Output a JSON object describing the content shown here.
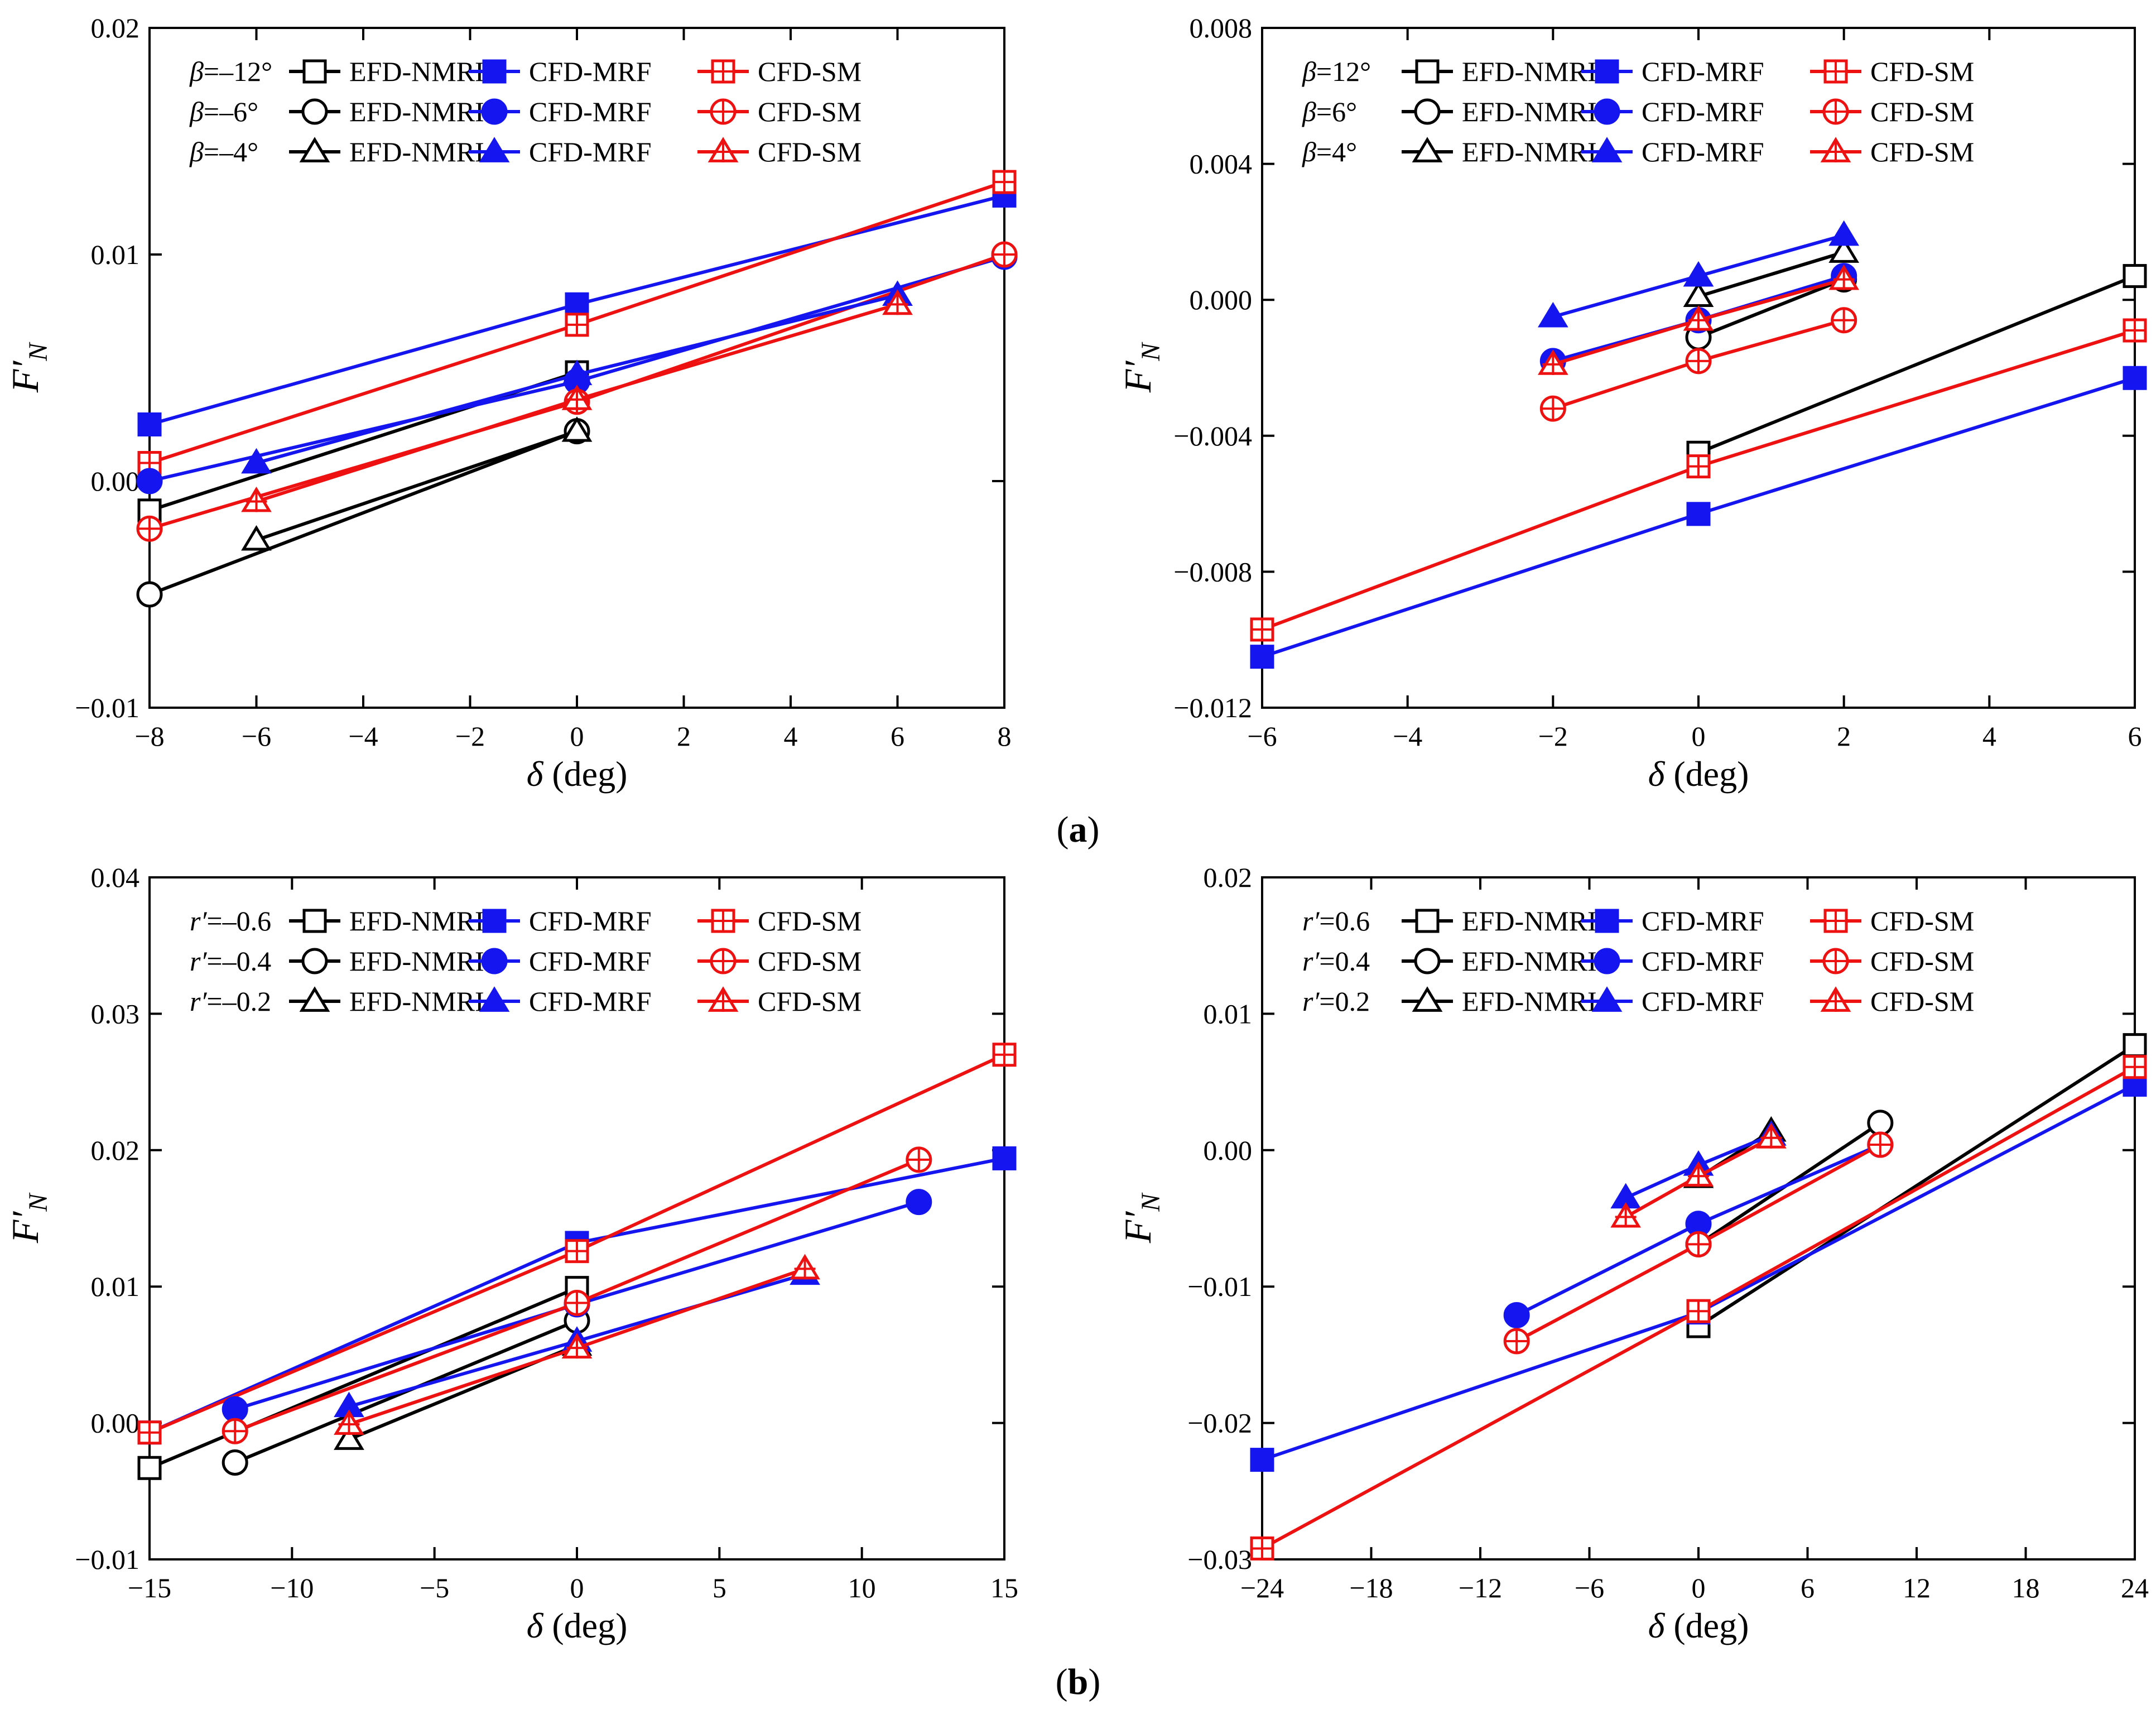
{
  "styles": {
    "EFD-NMRI": {
      "color": "#000000",
      "fill": "#ffffff"
    },
    "CFD-MRF": {
      "color": "#1515f0",
      "fill": "#1515f0"
    },
    "CFD-SM": {
      "color": "#ee1111",
      "fill": "#ffffff"
    }
  },
  "panel_labels": {
    "a": "a",
    "b": "b"
  },
  "chart_data": [
    {
      "type": "line",
      "id": "a-left",
      "xlabel": "δ (deg)",
      "ylabel": "F′N",
      "xlim": [
        -8,
        8
      ],
      "ylim": [
        -0.01,
        0.02
      ],
      "xticks": [
        -8,
        -6,
        -4,
        -2,
        0,
        2,
        4,
        6,
        8
      ],
      "xtick_labels": [
        "−8",
        "−6",
        "−4",
        "−2",
        "0",
        "2",
        "4",
        "6",
        "8"
      ],
      "yticks": [
        -0.01,
        0,
        0.01,
        0.02
      ],
      "ytick_labels": [
        "−0.01",
        "0.00",
        "0.01",
        "0.02"
      ],
      "legend": {
        "placement": "top-left",
        "param_symbol": "β",
        "param_values": [
          "–12°",
          "–6°",
          "–4°"
        ]
      },
      "series": [
        {
          "name": "EFD-NMRI",
          "group": 0,
          "marker": "square",
          "x": [
            -8,
            0
          ],
          "y": [
            -0.0013,
            0.0048
          ]
        },
        {
          "name": "CFD-MRF",
          "group": 0,
          "marker": "square",
          "x": [
            -8,
            0,
            8
          ],
          "y": [
            0.0025,
            0.0078,
            0.0126
          ]
        },
        {
          "name": "CFD-SM",
          "group": 0,
          "marker": "square",
          "x": [
            -8,
            0,
            8
          ],
          "y": [
            0.0008,
            0.0069,
            0.0132
          ]
        },
        {
          "name": "EFD-NMRI",
          "group": 1,
          "marker": "circle",
          "x": [
            -8,
            0
          ],
          "y": [
            -0.005,
            0.0022
          ]
        },
        {
          "name": "CFD-MRF",
          "group": 1,
          "marker": "circle",
          "x": [
            -8,
            0,
            8
          ],
          "y": [
            0.0,
            0.0044,
            0.0099
          ]
        },
        {
          "name": "CFD-SM",
          "group": 1,
          "marker": "circle",
          "x": [
            -8,
            0,
            8
          ],
          "y": [
            -0.0021,
            0.0035,
            0.01
          ]
        },
        {
          "name": "EFD-NMRI",
          "group": 2,
          "marker": "triangle",
          "x": [
            -6,
            0
          ],
          "y": [
            -0.0026,
            0.0022
          ]
        },
        {
          "name": "CFD-MRF",
          "group": 2,
          "marker": "triangle",
          "x": [
            -6,
            0,
            6
          ],
          "y": [
            0.0008,
            0.0047,
            0.0082
          ]
        },
        {
          "name": "CFD-SM",
          "group": 2,
          "marker": "triangle",
          "x": [
            -6,
            0,
            6
          ],
          "y": [
            -0.0009,
            0.0036,
            0.0078
          ]
        }
      ]
    },
    {
      "type": "line",
      "id": "a-right",
      "xlabel": "δ (deg)",
      "ylabel": "F′N",
      "xlim": [
        -6,
        6
      ],
      "ylim": [
        -0.012,
        0.008
      ],
      "xticks": [
        -6,
        -4,
        -2,
        0,
        2,
        4,
        6
      ],
      "xtick_labels": [
        "−6",
        "−4",
        "−2",
        "0",
        "2",
        "4",
        "6"
      ],
      "yticks": [
        -0.012,
        -0.008,
        -0.004,
        0,
        0.004,
        0.008
      ],
      "ytick_labels": [
        "−0.012",
        "−0.008",
        "−0.004",
        "0.000",
        "0.004",
        "0.008"
      ],
      "legend": {
        "placement": "top-left",
        "param_symbol": "β",
        "param_values": [
          "12°",
          "6°",
          "4°"
        ]
      },
      "series": [
        {
          "name": "EFD-NMRI",
          "group": 0,
          "marker": "square",
          "x": [
            0,
            6
          ],
          "y": [
            -0.0045,
            0.0007
          ]
        },
        {
          "name": "CFD-MRF",
          "group": 0,
          "marker": "square",
          "x": [
            -6,
            0,
            6
          ],
          "y": [
            -0.0105,
            -0.0063,
            -0.0023
          ]
        },
        {
          "name": "CFD-SM",
          "group": 0,
          "marker": "square",
          "x": [
            -6,
            0,
            6
          ],
          "y": [
            -0.0097,
            -0.0049,
            -0.0009
          ]
        },
        {
          "name": "EFD-NMRI",
          "group": 1,
          "marker": "circle",
          "x": [
            0,
            2
          ],
          "y": [
            -0.0011,
            0.0006
          ]
        },
        {
          "name": "CFD-MRF",
          "group": 1,
          "marker": "circle",
          "x": [
            -2,
            0,
            2
          ],
          "y": [
            -0.0018,
            -0.0006,
            0.0007
          ]
        },
        {
          "name": "CFD-SM",
          "group": 1,
          "marker": "circle",
          "x": [
            -2,
            0,
            2
          ],
          "y": [
            -0.0032,
            -0.0018,
            -0.0006
          ]
        },
        {
          "name": "EFD-NMRI",
          "group": 2,
          "marker": "triangle",
          "x": [
            0,
            2
          ],
          "y": [
            0.0001,
            0.0014
          ]
        },
        {
          "name": "CFD-MRF",
          "group": 2,
          "marker": "triangle",
          "x": [
            -2,
            0,
            2
          ],
          "y": [
            -0.0005,
            0.0007,
            0.0019
          ]
        },
        {
          "name": "CFD-SM",
          "group": 2,
          "marker": "triangle",
          "x": [
            -2,
            0,
            2
          ],
          "y": [
            -0.0019,
            -0.0006,
            0.0006
          ]
        }
      ]
    },
    {
      "type": "line",
      "id": "b-left",
      "xlabel": "δ (deg)",
      "ylabel": "F′N",
      "xlim": [
        -15,
        15
      ],
      "ylim": [
        -0.01,
        0.04
      ],
      "xticks": [
        -15,
        -10,
        -5,
        0,
        5,
        10,
        15
      ],
      "xtick_labels": [
        "−15",
        "−10",
        "−5",
        "0",
        "5",
        "10",
        "15"
      ],
      "yticks": [
        -0.01,
        0,
        0.01,
        0.02,
        0.03,
        0.04
      ],
      "ytick_labels": [
        "−0.01",
        "0.00",
        "0.01",
        "0.02",
        "0.03",
        "0.04"
      ],
      "legend": {
        "placement": "top-left",
        "param_symbol": "r′",
        "param_values": [
          "–0.6",
          "–0.4",
          "–0.2"
        ]
      },
      "series": [
        {
          "name": "EFD-NMRI",
          "group": 0,
          "marker": "square",
          "x": [
            -15,
            0
          ],
          "y": [
            -0.0033,
            0.0099
          ]
        },
        {
          "name": "CFD-MRF",
          "group": 0,
          "marker": "square",
          "x": [
            -15,
            0,
            15
          ],
          "y": [
            -0.0007,
            0.0132,
            0.0194
          ]
        },
        {
          "name": "CFD-SM",
          "group": 0,
          "marker": "square",
          "x": [
            -15,
            0,
            15
          ],
          "y": [
            -0.0007,
            0.0126,
            0.027
          ]
        },
        {
          "name": "EFD-NMRI",
          "group": 1,
          "marker": "circle",
          "x": [
            -12,
            0
          ],
          "y": [
            -0.0029,
            0.0075
          ]
        },
        {
          "name": "CFD-MRF",
          "group": 1,
          "marker": "circle",
          "x": [
            -12,
            0,
            12
          ],
          "y": [
            0.001,
            0.0087,
            0.0162
          ]
        },
        {
          "name": "CFD-SM",
          "group": 1,
          "marker": "circle",
          "x": [
            -12,
            0,
            12
          ],
          "y": [
            -0.0006,
            0.0088,
            0.0193
          ]
        },
        {
          "name": "EFD-NMRI",
          "group": 2,
          "marker": "triangle",
          "x": [
            -8,
            0
          ],
          "y": [
            -0.0012,
            0.0057
          ]
        },
        {
          "name": "CFD-MRF",
          "group": 2,
          "marker": "triangle",
          "x": [
            -8,
            0,
            8
          ],
          "y": [
            0.0012,
            0.006,
            0.0109
          ]
        },
        {
          "name": "CFD-SM",
          "group": 2,
          "marker": "triangle",
          "x": [
            -8,
            0,
            8
          ],
          "y": [
            -0.0001,
            0.0055,
            0.0113
          ]
        }
      ]
    },
    {
      "type": "line",
      "id": "b-right",
      "xlabel": "δ (deg)",
      "ylabel": "F′N",
      "xlim": [
        -24,
        24
      ],
      "ylim": [
        -0.03,
        0.02
      ],
      "xticks": [
        -24,
        -18,
        -12,
        -6,
        0,
        6,
        12,
        18,
        24
      ],
      "xtick_labels": [
        "−24",
        "−18",
        "−12",
        "−6",
        "0",
        "6",
        "12",
        "18",
        "24"
      ],
      "yticks": [
        -0.03,
        -0.02,
        -0.01,
        0,
        0.01,
        0.02
      ],
      "ytick_labels": [
        "−0.03",
        "−0.02",
        "−0.01",
        "0.00",
        "0.01",
        "0.02"
      ],
      "legend": {
        "placement": "top-left",
        "param_symbol": "r′",
        "param_values": [
          "0.6",
          "0.4",
          "0.2"
        ]
      },
      "series": [
        {
          "name": "EFD-NMRI",
          "group": 0,
          "marker": "square",
          "x": [
            0,
            24
          ],
          "y": [
            -0.0129,
            0.0077
          ]
        },
        {
          "name": "CFD-MRF",
          "group": 0,
          "marker": "square",
          "x": [
            -24,
            0,
            24
          ],
          "y": [
            -0.0227,
            -0.0119,
            0.0048
          ]
        },
        {
          "name": "CFD-SM",
          "group": 0,
          "marker": "square",
          "x": [
            -24,
            0,
            24
          ],
          "y": [
            -0.0292,
            -0.0118,
            0.0061
          ]
        },
        {
          "name": "EFD-NMRI",
          "group": 1,
          "marker": "circle",
          "x": [
            0,
            10
          ],
          "y": [
            -0.0069,
            0.002
          ]
        },
        {
          "name": "CFD-MRF",
          "group": 1,
          "marker": "circle",
          "x": [
            -10,
            0,
            10
          ],
          "y": [
            -0.0121,
            -0.0054,
            0.0004
          ]
        },
        {
          "name": "CFD-SM",
          "group": 1,
          "marker": "circle",
          "x": [
            -10,
            0,
            10
          ],
          "y": [
            -0.014,
            -0.0069,
            0.0004
          ]
        },
        {
          "name": "EFD-NMRI",
          "group": 2,
          "marker": "triangle",
          "x": [
            0,
            4
          ],
          "y": [
            -0.002,
            0.0014
          ]
        },
        {
          "name": "CFD-MRF",
          "group": 2,
          "marker": "triangle",
          "x": [
            -4,
            0,
            4
          ],
          "y": [
            -0.0035,
            -0.0011,
            0.0011
          ]
        },
        {
          "name": "CFD-SM",
          "group": 2,
          "marker": "triangle",
          "x": [
            -4,
            0,
            4
          ],
          "y": [
            -0.0049,
            -0.0019,
            0.0009
          ]
        }
      ]
    }
  ]
}
